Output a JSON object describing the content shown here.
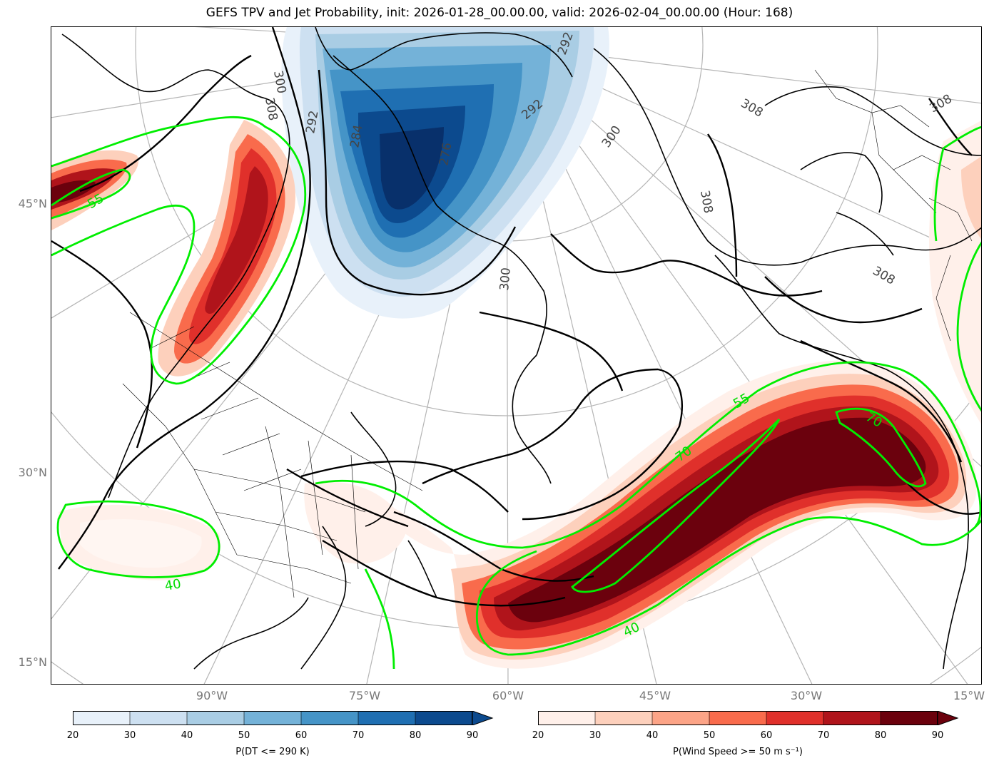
{
  "title": "GEFS TPV and Jet Probability, init: 2026-01-28_00.00.00, valid: 2026-02-04_00.00.00 (Hour: 168)",
  "lat_labels": [
    "45°N",
    "30°N",
    "15°N"
  ],
  "lon_labels": [
    "90°W",
    "75°W",
    "60°W",
    "45°W",
    "30°W",
    "15°W"
  ],
  "dt_contour_labels": [
    "300",
    "308",
    "292",
    "284",
    "276",
    "300",
    "292",
    "300",
    "308",
    "308",
    "308",
    "308",
    "308",
    "292",
    "292"
  ],
  "jet_contour_labels": [
    "55",
    "40",
    "55",
    "70",
    "70",
    "40"
  ],
  "colorbar_blue": {
    "label": "P(DT <= 290 K)",
    "ticks": [
      "20",
      "30",
      "40",
      "50",
      "60",
      "70",
      "80",
      "90"
    ],
    "colors": [
      "#e8f1fa",
      "#cde0f1",
      "#a9cde4",
      "#74b2d8",
      "#4594c7",
      "#1f6fb2",
      "#0c4a8e"
    ]
  },
  "colorbar_red": {
    "label": "P(Wind Speed >= 50 m s$^{-1}$)",
    "label_display": "P(Wind Speed >= 50 m s⁻¹)",
    "ticks": [
      "20",
      "30",
      "40",
      "50",
      "60",
      "70",
      "80",
      "90"
    ],
    "colors": [
      "#fff0ea",
      "#fdd0bc",
      "#fca487",
      "#f96b4c",
      "#e0302b",
      "#b0141b",
      "#6b010d"
    ]
  }
}
